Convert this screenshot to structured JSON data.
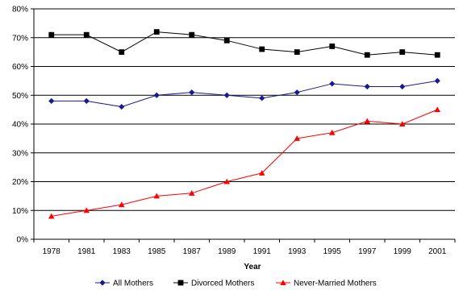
{
  "chart_data": {
    "type": "line",
    "title": "",
    "xlabel": "Year",
    "ylabel": "",
    "categories": [
      "1978",
      "1981",
      "1983",
      "1985",
      "1987",
      "1989",
      "1991",
      "1993",
      "1995",
      "1997",
      "1999",
      "2001"
    ],
    "ylim": [
      0,
      80
    ],
    "ytick_values": [
      0,
      10,
      20,
      30,
      40,
      50,
      60,
      70,
      80
    ],
    "ytick_labels": [
      "0%",
      "10%",
      "20%",
      "30%",
      "40%",
      "50%",
      "60%",
      "70%",
      "80%"
    ],
    "grid": true,
    "legend_position": "bottom",
    "series": [
      {
        "name": "All Mothers",
        "color": "#1a1a8c",
        "marker": "diamond",
        "values": [
          48,
          48,
          46,
          50,
          51,
          50,
          49,
          51,
          54,
          53,
          53,
          55
        ]
      },
      {
        "name": "Divorced Mothers",
        "color": "#000000",
        "marker": "square",
        "values": [
          71,
          71,
          65,
          72,
          71,
          69,
          66,
          65,
          67,
          64,
          65,
          64
        ]
      },
      {
        "name": "Never-Married Mothers",
        "color": "#ff0000",
        "marker": "triangle",
        "values": [
          8,
          10,
          12,
          15,
          16,
          20,
          23,
          35,
          37,
          41,
          40,
          45
        ]
      }
    ]
  }
}
